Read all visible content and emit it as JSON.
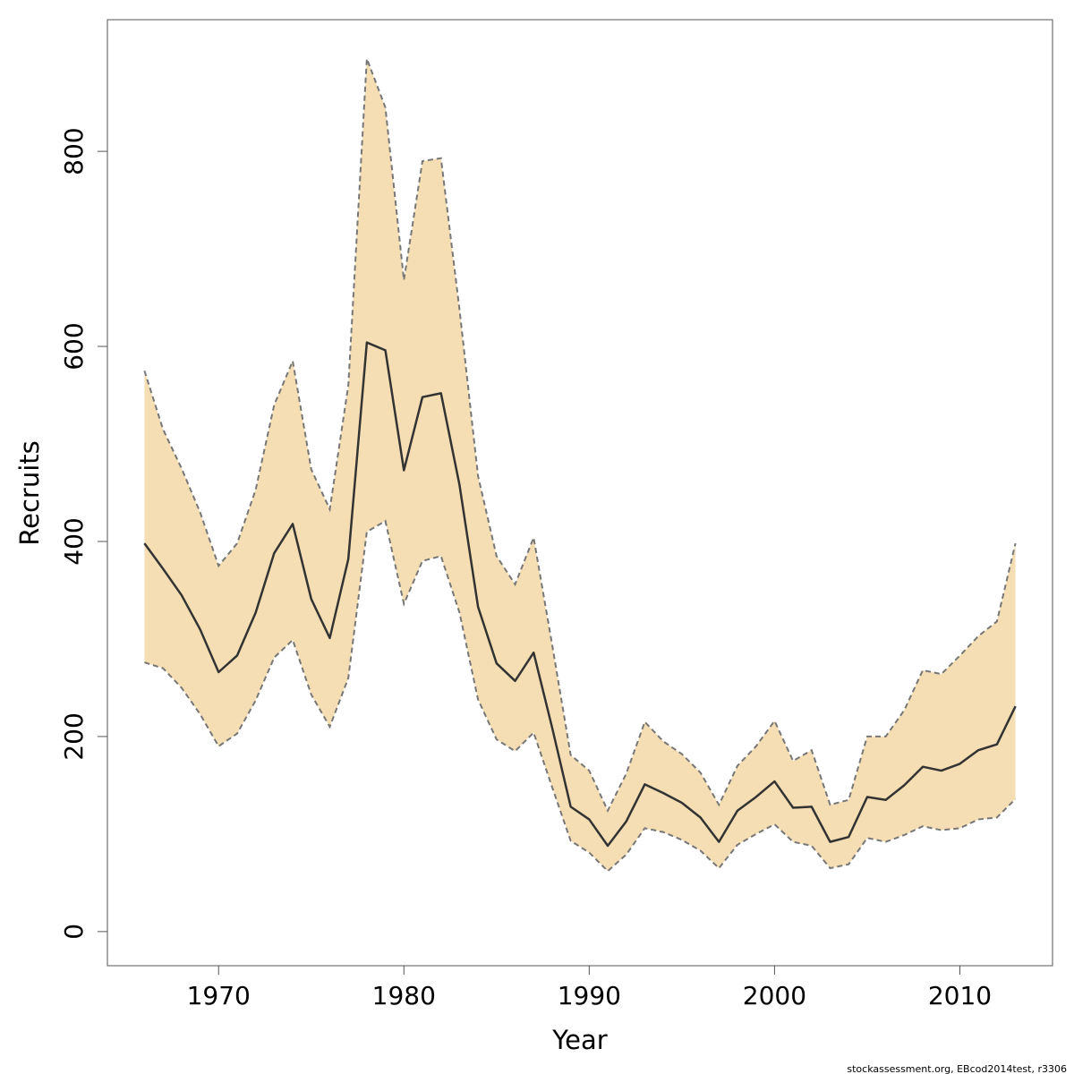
{
  "chart_data": {
    "type": "area",
    "xlabel": "Year",
    "ylabel": "Recruits",
    "xlim": [
      1964,
      2015
    ],
    "ylim": [
      -35,
      935
    ],
    "x_ticks": [
      1970,
      1980,
      1990,
      2000,
      2010
    ],
    "y_ticks": [
      0,
      200,
      400,
      600,
      800
    ],
    "x_tick_labels": [
      "1970",
      "1980",
      "1990",
      "2000",
      "2010"
    ],
    "y_tick_labels": [
      "0",
      "200",
      "400",
      "600",
      "800"
    ],
    "grid": false,
    "legend": "none",
    "colors": {
      "band": "#f5deb3",
      "line": "#333333",
      "bound": "#777777",
      "frame": "#555555"
    },
    "x": [
      1966,
      1967,
      1968,
      1969,
      1970,
      1971,
      1972,
      1973,
      1974,
      1975,
      1976,
      1977,
      1978,
      1979,
      1980,
      1981,
      1982,
      1983,
      1984,
      1985,
      1986,
      1987,
      1988,
      1989,
      1990,
      1991,
      1992,
      1993,
      1994,
      1995,
      1996,
      1997,
      1998,
      1999,
      2000,
      2001,
      2002,
      2003,
      2004,
      2005,
      2006,
      2007,
      2008,
      2009,
      2010,
      2011,
      2012,
      2013
    ],
    "series": [
      {
        "role": "estimate",
        "values": [
          398,
          372,
          345,
          310,
          266,
          283,
          327,
          388,
          418,
          341,
          301,
          382,
          604,
          596,
          473,
          548,
          552,
          458,
          333,
          275,
          257,
          286,
          209,
          128,
          115,
          88,
          113,
          151,
          142,
          132,
          117,
          92,
          124,
          138,
          154,
          127,
          128,
          92,
          97,
          138,
          135,
          150,
          169,
          165,
          172,
          186,
          192,
          231
        ]
      },
      {
        "role": "lower",
        "values": [
          276,
          270,
          250,
          223,
          190,
          203,
          237,
          281,
          299,
          243,
          210,
          260,
          410,
          421,
          336,
          380,
          385,
          327,
          238,
          197,
          185,
          204,
          148,
          93,
          81,
          62,
          79,
          106,
          102,
          94,
          83,
          65,
          89,
          100,
          110,
          92,
          88,
          65,
          69,
          96,
          92,
          99,
          108,
          104,
          106,
          115,
          117,
          136
        ]
      },
      {
        "role": "upper",
        "values": [
          575,
          515,
          475,
          430,
          375,
          398,
          453,
          540,
          585,
          474,
          433,
          560,
          895,
          845,
          668,
          790,
          793,
          638,
          467,
          385,
          356,
          404,
          294,
          181,
          165,
          124,
          162,
          215,
          195,
          182,
          163,
          130,
          170,
          190,
          216,
          175,
          186,
          130,
          135,
          200,
          200,
          227,
          268,
          264,
          283,
          303,
          318,
          398
        ]
      }
    ]
  },
  "footnote": "stockassessment.org, EBcod2014test, r3306"
}
